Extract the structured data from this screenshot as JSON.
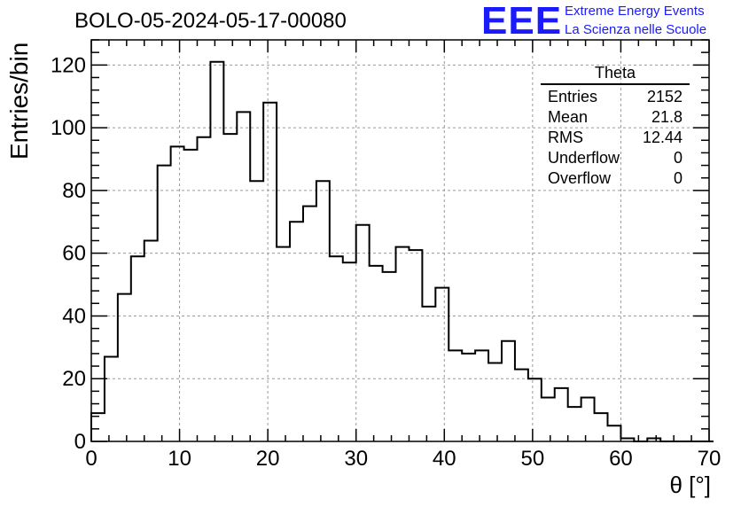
{
  "page_title": "BOLO-05-2024-05-17-00080",
  "logo": {
    "mark": "EEE",
    "line1": "Extreme Energy Events",
    "line2": "La Scienza nelle Scuole"
  },
  "stats_box": {
    "title": "Theta",
    "rows": [
      {
        "label": "Entries",
        "value": "2152"
      },
      {
        "label": "Mean",
        "value": "21.8"
      },
      {
        "label": "RMS",
        "value": "12.44"
      },
      {
        "label": "Underflow",
        "value": "0"
      },
      {
        "label": "Overflow",
        "value": "0"
      }
    ]
  },
  "chart_data": {
    "type": "bar",
    "histogram": true,
    "title": "BOLO-05-2024-05-17-00080",
    "xlabel": "θ [°]",
    "ylabel": "Entries/bin",
    "xlim": [
      0,
      70
    ],
    "ylim": [
      0,
      128
    ],
    "bin_width": 1.5,
    "bin_edges_start": 0,
    "x_ticks": [
      0,
      10,
      20,
      30,
      40,
      50,
      60,
      70
    ],
    "y_ticks": [
      0,
      20,
      40,
      60,
      80,
      100,
      120
    ],
    "grid": true,
    "line_color": "#000000",
    "values": [
      9,
      27,
      47,
      59,
      64,
      88,
      94,
      93,
      97,
      121,
      98,
      105,
      83,
      108,
      62,
      70,
      75,
      83,
      59,
      57,
      69,
      56,
      54,
      62,
      61,
      43,
      49,
      29,
      28,
      29,
      25,
      32,
      23,
      20,
      14,
      17,
      11,
      14,
      9,
      5,
      1,
      0,
      1,
      0,
      0,
      0,
      0
    ]
  }
}
